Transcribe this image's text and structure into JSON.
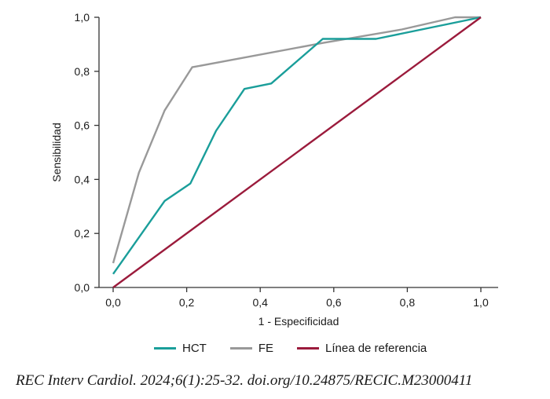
{
  "chart_data": {
    "type": "line",
    "xlabel": "1 - Especificidad",
    "ylabel": "Sensibilidad",
    "xlim": [
      0,
      1
    ],
    "ylim": [
      0,
      1
    ],
    "xticks": [
      "0,0",
      "0,2",
      "0,4",
      "0,6",
      "0,8",
      "1,0"
    ],
    "yticks": [
      "0,0",
      "0,2",
      "0,4",
      "0,6",
      "0,8",
      "1,0"
    ],
    "grid": false,
    "legend_position": "bottom",
    "series": [
      {
        "name": "HCT",
        "color": "#1a9e9a",
        "points": [
          [
            0.0,
            0.05
          ],
          [
            0.14,
            0.32
          ],
          [
            0.21,
            0.385
          ],
          [
            0.28,
            0.58
          ],
          [
            0.357,
            0.735
          ],
          [
            0.43,
            0.755
          ],
          [
            0.57,
            0.92
          ],
          [
            0.715,
            0.92
          ],
          [
            1.0,
            1.0
          ]
        ]
      },
      {
        "name": "FE",
        "color": "#999999",
        "points": [
          [
            0.0,
            0.09
          ],
          [
            0.07,
            0.425
          ],
          [
            0.14,
            0.655
          ],
          [
            0.215,
            0.815
          ],
          [
            0.57,
            0.905
          ],
          [
            0.785,
            0.955
          ],
          [
            0.93,
            1.0
          ],
          [
            1.0,
            1.0
          ]
        ]
      },
      {
        "name": "Línea de referencia",
        "color": "#9b1b3c",
        "points": [
          [
            0.0,
            0.0
          ],
          [
            1.0,
            1.0
          ]
        ]
      }
    ]
  },
  "citation": "REC Interv Cardiol. 2024;6(1):25-32. doi.org/10.24875/RECIC.M23000411"
}
